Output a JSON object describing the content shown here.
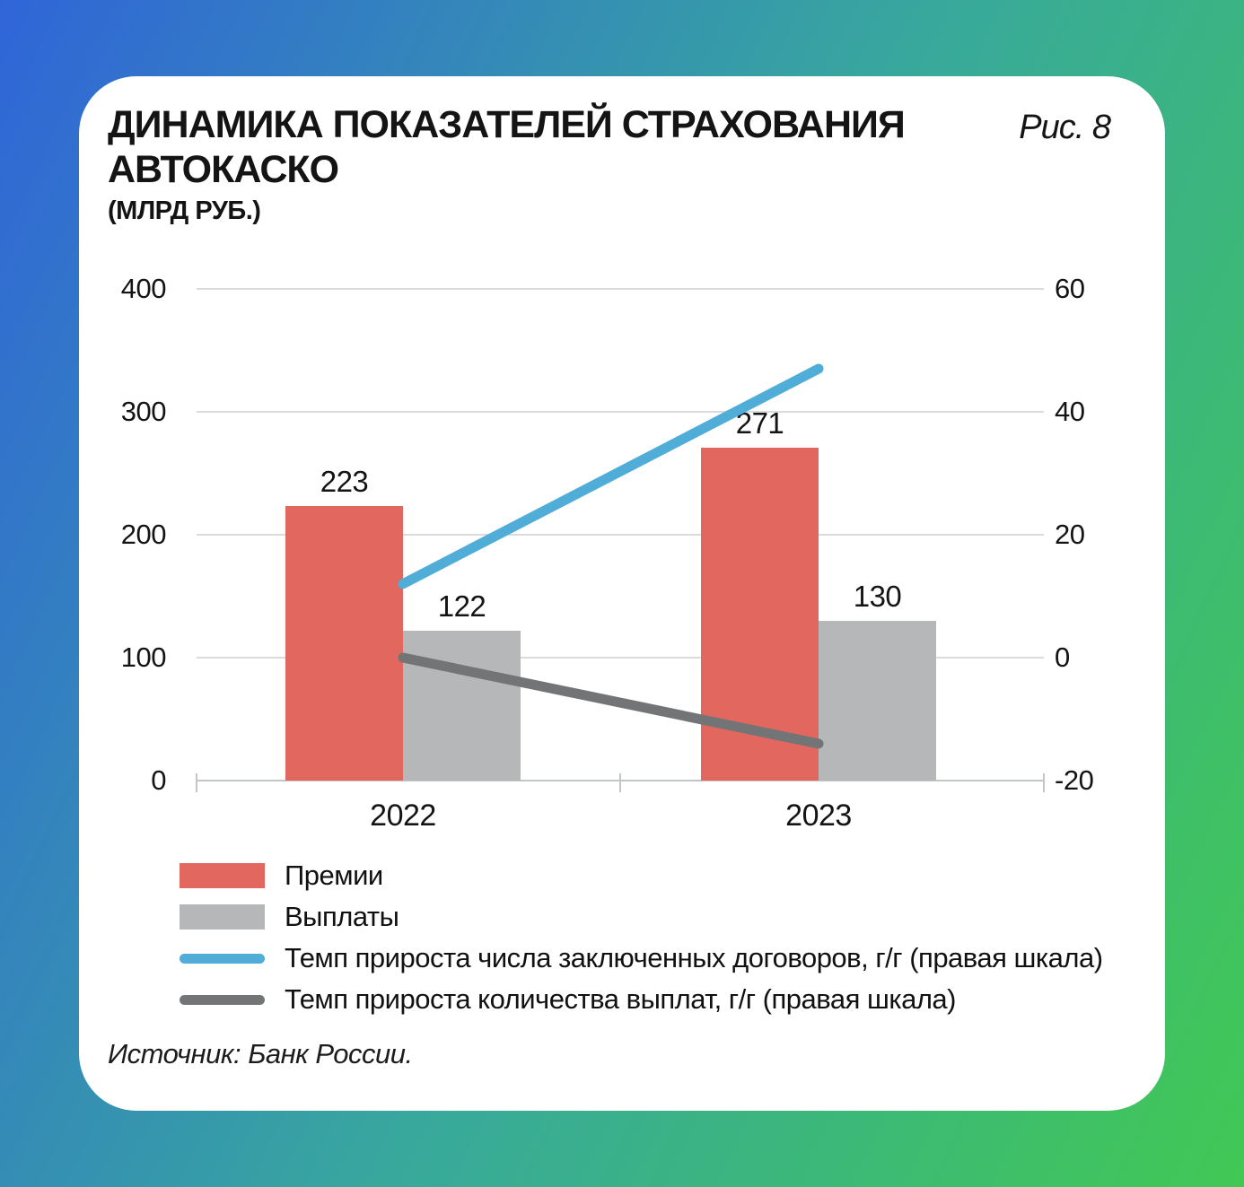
{
  "header": {
    "title_line1": "ДИНАМИКА ПОКАЗАТЕЛЕЙ СТРАХОВАНИЯ",
    "title_line2": "АВТОКАСКО",
    "subtitle": "(МЛРД РУБ.)",
    "figure_label": "Рис. 8"
  },
  "source": "Источник: Банк России.",
  "colors": {
    "premiums_bar": "#e2675f",
    "payouts_bar": "#b6b7b9",
    "contracts_line": "#4fadd7",
    "payouts_count_line": "#727476",
    "background_gradient_start": "#3065d8",
    "background_gradient_mid": "#38a89d",
    "background_gradient_end": "#41c854",
    "card_background": "#ffffff",
    "gridline": "#dbdbdb",
    "axis_line": "#c2c6c6",
    "text": "#141414"
  },
  "chart_data": {
    "type": "bar+line",
    "categories": [
      "2022",
      "2023"
    ],
    "bar_series": [
      {
        "id": "premiums",
        "name": "Премии",
        "values": [
          223,
          271
        ],
        "color_key": "premiums_bar",
        "axis": "left"
      },
      {
        "id": "payouts",
        "name": "Выплаты",
        "values": [
          122,
          130
        ],
        "color_key": "payouts_bar",
        "axis": "left"
      }
    ],
    "line_series": [
      {
        "id": "contracts-growth",
        "name": "Темп прироста числа заключенных договоров, г/г (правая шкала)",
        "values": [
          12,
          47
        ],
        "color_key": "contracts_line",
        "axis": "right"
      },
      {
        "id": "payouts-count-growth",
        "name": "Темп прироста количества выплат, г/г (правая шкала)",
        "values": [
          0,
          -14
        ],
        "color_key": "payouts_count_line",
        "axis": "right"
      }
    ],
    "left_axis": {
      "ticks": [
        400,
        300,
        200,
        100,
        0
      ],
      "min": 0,
      "max": 400
    },
    "right_axis": {
      "ticks": [
        60,
        40,
        20,
        0,
        -20
      ],
      "min": -20,
      "max": 60
    },
    "bar_value_labels": [
      [
        223,
        271
      ],
      [
        122,
        130
      ]
    ],
    "grid": "horizontal",
    "legend_position": "bottom-left"
  }
}
